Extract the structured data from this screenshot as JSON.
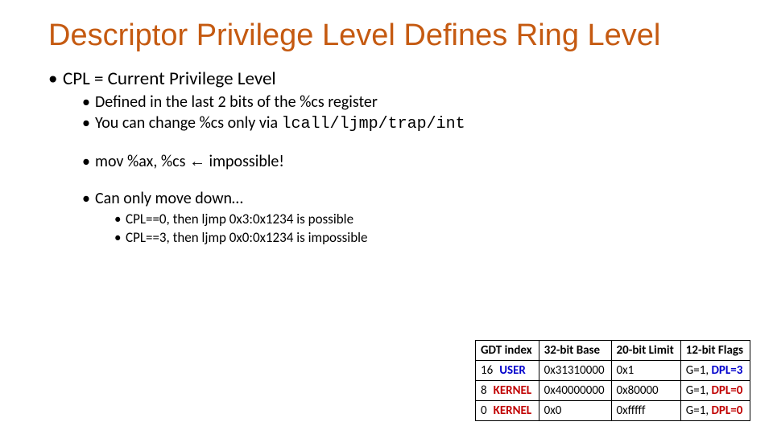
{
  "title_color": "#c55a11",
  "title": "Descriptor Privilege Level Defines Ring Level",
  "bullets": {
    "b1": "CPL = Current Privilege Level",
    "b1_1": "Defined in the last 2 bits of the %cs register",
    "b1_2_pre": "You can change %cs only via ",
    "b1_2_code": "lcall/ljmp/trap/int",
    "b2_pre": "mov %ax, %cs ",
    "b2_arrow": "←",
    "b2_post": " impossible!",
    "b3": "Can only move down…",
    "b3_1": "CPL==0, then ljmp 0x3:0x1234 is possible",
    "b3_2": "CPL==3, then ljmp 0x0:0x1234 is impossible"
  },
  "table": {
    "headers": [
      "GDT index",
      "32-bit Base",
      "20-bit Limit",
      "12-bit Flags"
    ],
    "rows": [
      {
        "idx": "16",
        "label": "USER",
        "label_color": "#0000cc",
        "base": "0x31310000",
        "limit": "0x1",
        "flags_pre": "G=1, ",
        "flags_dpl": "DPL=3",
        "dpl_color": "#0000cc"
      },
      {
        "idx": "8",
        "label": "KERNEL",
        "label_color": "#c00000",
        "base": "0x40000000",
        "limit": "0x80000",
        "flags_pre": "G=1, ",
        "flags_dpl": "DPL=0",
        "dpl_color": "#c00000"
      },
      {
        "idx": "0",
        "label": "KERNEL",
        "label_color": "#c00000",
        "base": "0x0",
        "limit": "0xfffff",
        "flags_pre": "G=1, ",
        "flags_dpl": "DPL=0",
        "dpl_color": "#c00000"
      }
    ]
  }
}
